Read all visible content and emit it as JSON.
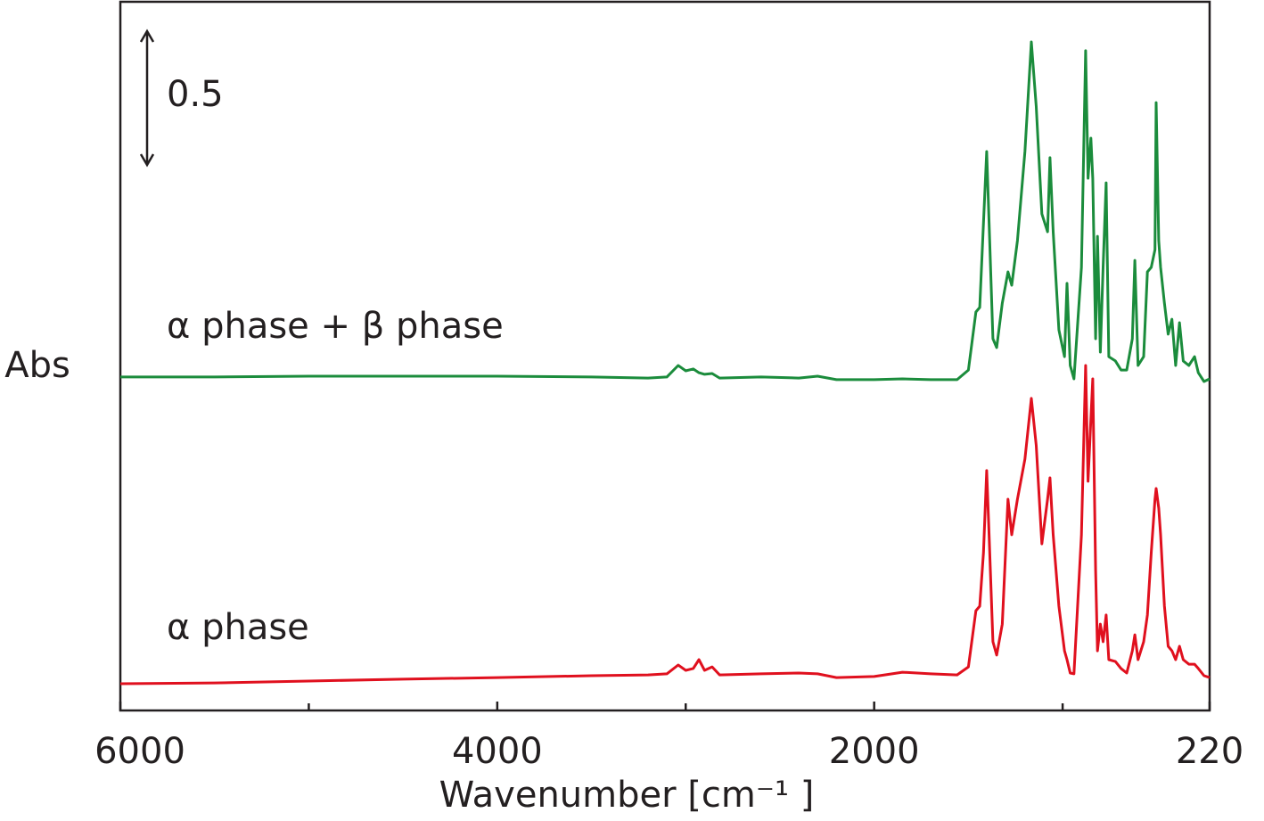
{
  "chart_data": {
    "type": "line",
    "xlabel": "Wavenumber [cm⁻¹ ]",
    "ylabel": "Abs",
    "scale_bar": 0.5,
    "xlim": [
      6000,
      220
    ],
    "ylim": [
      0,
      2.65
    ],
    "xticks": [
      6000,
      4000,
      2000,
      220
    ],
    "xminorticks": [
      5000,
      3000,
      1000
    ],
    "x": [
      6000,
      5500,
      5000,
      4500,
      4000,
      3500,
      3200,
      3100,
      3040,
      3000,
      2960,
      2930,
      2900,
      2860,
      2820,
      2600,
      2400,
      2300,
      2200,
      2000,
      1850,
      1700,
      1560,
      1500,
      1460,
      1440,
      1420,
      1403,
      1390,
      1370,
      1350,
      1320,
      1290,
      1270,
      1240,
      1200,
      1166,
      1140,
      1110,
      1080,
      1067,
      1050,
      1020,
      990,
      977,
      960,
      940,
      900,
      878,
      865,
      850,
      840,
      825,
      815,
      800,
      785,
      769,
      755,
      720,
      690,
      660,
      630,
      617,
      600,
      570,
      550,
      530,
      510,
      504,
      490,
      480,
      460,
      440,
      420,
      400,
      380,
      360,
      330,
      300,
      280,
      250,
      220
    ],
    "series": [
      {
        "name": "α phase + β phase",
        "color": "#1b8c3c",
        "values": [
          1.247,
          1.247,
          1.25,
          1.25,
          1.25,
          1.247,
          1.243,
          1.247,
          1.29,
          1.27,
          1.277,
          1.263,
          1.257,
          1.26,
          1.243,
          1.247,
          1.243,
          1.25,
          1.237,
          1.237,
          1.24,
          1.237,
          1.237,
          1.273,
          1.49,
          1.507,
          1.823,
          2.09,
          1.823,
          1.39,
          1.357,
          1.523,
          1.64,
          1.59,
          1.757,
          2.09,
          2.5,
          2.257,
          1.857,
          1.79,
          2.067,
          1.79,
          1.423,
          1.323,
          1.597,
          1.29,
          1.24,
          1.657,
          2.467,
          1.99,
          2.14,
          1.99,
          1.39,
          1.773,
          1.34,
          1.657,
          1.973,
          1.323,
          1.307,
          1.273,
          1.273,
          1.39,
          1.683,
          1.29,
          1.323,
          1.64,
          1.657,
          1.723,
          2.273,
          1.757,
          1.657,
          1.523,
          1.407,
          1.463,
          1.29,
          1.45,
          1.307,
          1.29,
          1.323,
          1.263,
          1.23,
          1.24
        ]
      },
      {
        "name": "α phase",
        "color": "#e0101e",
        "values": [
          0.1,
          0.103,
          0.11,
          0.117,
          0.123,
          0.13,
          0.133,
          0.137,
          0.17,
          0.15,
          0.157,
          0.19,
          0.15,
          0.163,
          0.133,
          0.137,
          0.14,
          0.137,
          0.123,
          0.127,
          0.143,
          0.137,
          0.133,
          0.163,
          0.373,
          0.39,
          0.59,
          0.897,
          0.657,
          0.257,
          0.207,
          0.323,
          0.79,
          0.657,
          0.79,
          0.94,
          1.167,
          0.99,
          0.623,
          0.79,
          0.87,
          0.657,
          0.39,
          0.223,
          0.19,
          0.14,
          0.137,
          0.657,
          1.29,
          0.857,
          1.09,
          1.24,
          0.523,
          0.223,
          0.323,
          0.257,
          0.357,
          0.19,
          0.183,
          0.157,
          0.14,
          0.223,
          0.283,
          0.19,
          0.257,
          0.357,
          0.59,
          0.79,
          0.83,
          0.757,
          0.657,
          0.39,
          0.24,
          0.223,
          0.19,
          0.24,
          0.19,
          0.173,
          0.173,
          0.157,
          0.13,
          0.123
        ]
      }
    ]
  }
}
